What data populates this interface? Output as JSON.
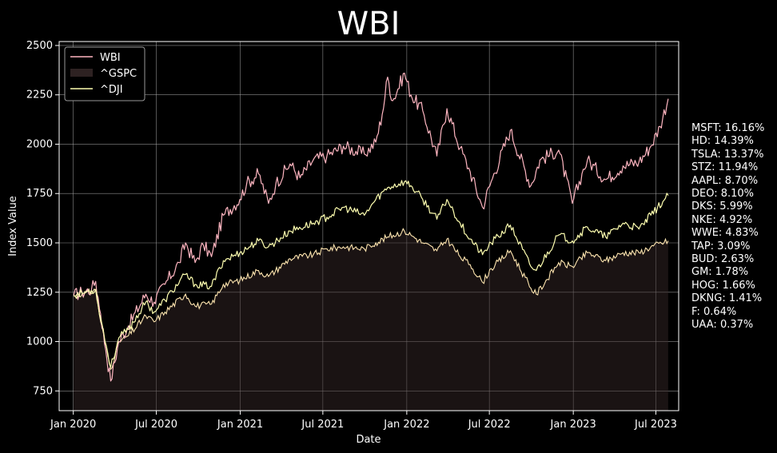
{
  "chart_data": {
    "type": "line",
    "title": "WBI",
    "xlabel": "Date",
    "ylabel": "Index Value",
    "x_range": [
      "2019-12-01",
      "2023-08-20"
    ],
    "ylim": [
      650,
      2520
    ],
    "x_ticks": [
      {
        "date": "2020-01-01",
        "label": "Jan 2020"
      },
      {
        "date": "2020-07-01",
        "label": "Jul 2020"
      },
      {
        "date": "2021-01-01",
        "label": "Jan 2021"
      },
      {
        "date": "2021-07-01",
        "label": "Jul 2021"
      },
      {
        "date": "2022-01-01",
        "label": "Jan 2022"
      },
      {
        "date": "2022-07-01",
        "label": "Jul 2022"
      },
      {
        "date": "2023-01-01",
        "label": "Jan 2023"
      },
      {
        "date": "2023-07-01",
        "label": "Jul 2023"
      }
    ],
    "y_ticks": [
      750,
      1000,
      1250,
      1500,
      1750,
      2000,
      2250,
      2500
    ],
    "grid": true,
    "legend_position": "top-left",
    "series": [
      {
        "name": "WBI",
        "style": "line",
        "color": "#ffb6c1",
        "points": [
          [
            "2020-01-02",
            1235
          ],
          [
            "2020-01-20",
            1250
          ],
          [
            "2020-02-10",
            1265
          ],
          [
            "2020-02-19",
            1305
          ],
          [
            "2020-03-01",
            1140
          ],
          [
            "2020-03-12",
            960
          ],
          [
            "2020-03-23",
            800
          ],
          [
            "2020-04-10",
            1000
          ],
          [
            "2020-05-01",
            1080
          ],
          [
            "2020-06-08",
            1240
          ],
          [
            "2020-06-26",
            1200
          ],
          [
            "2020-07-20",
            1290
          ],
          [
            "2020-08-20",
            1400
          ],
          [
            "2020-09-03",
            1500
          ],
          [
            "2020-09-24",
            1400
          ],
          [
            "2020-10-12",
            1490
          ],
          [
            "2020-10-30",
            1430
          ],
          [
            "2020-11-25",
            1640
          ],
          [
            "2020-12-31",
            1720
          ],
          [
            "2021-01-15",
            1800
          ],
          [
            "2021-02-10",
            1850
          ],
          [
            "2021-03-04",
            1700
          ],
          [
            "2021-03-20",
            1800
          ],
          [
            "2021-04-20",
            1900
          ],
          [
            "2021-05-12",
            1830
          ],
          [
            "2021-06-10",
            1920
          ],
          [
            "2021-07-10",
            1940
          ],
          [
            "2021-08-15",
            1990
          ],
          [
            "2021-09-30",
            1950
          ],
          [
            "2021-10-25",
            2010
          ],
          [
            "2021-11-08",
            2150
          ],
          [
            "2021-11-20",
            2340
          ],
          [
            "2021-12-01",
            2220
          ],
          [
            "2021-12-27",
            2360
          ],
          [
            "2022-01-10",
            2250
          ],
          [
            "2022-02-05",
            2170
          ],
          [
            "2022-03-08",
            1940
          ],
          [
            "2022-03-30",
            2180
          ],
          [
            "2022-04-28",
            1980
          ],
          [
            "2022-05-20",
            1860
          ],
          [
            "2022-06-16",
            1680
          ],
          [
            "2022-07-05",
            1810
          ],
          [
            "2022-08-16",
            2070
          ],
          [
            "2022-09-30",
            1790
          ],
          [
            "2022-10-20",
            1920
          ],
          [
            "2022-11-30",
            1970
          ],
          [
            "2022-12-30",
            1700
          ],
          [
            "2023-01-20",
            1850
          ],
          [
            "2023-02-01",
            1920
          ],
          [
            "2023-03-13",
            1820
          ],
          [
            "2023-04-20",
            1890
          ],
          [
            "2023-05-25",
            1910
          ],
          [
            "2023-06-20",
            1990
          ],
          [
            "2023-07-10",
            2090
          ],
          [
            "2023-07-28",
            2230
          ]
        ]
      },
      {
        "name": "^GSPC",
        "style": "area",
        "color": "#3a2a2a",
        "opacity": 0.45,
        "points": [
          [
            "2020-01-02",
            1230
          ],
          [
            "2020-01-20",
            1240
          ],
          [
            "2020-02-19",
            1260
          ],
          [
            "2020-03-01",
            1100
          ],
          [
            "2020-03-23",
            860
          ],
          [
            "2020-04-10",
            1000
          ],
          [
            "2020-05-01",
            1030
          ],
          [
            "2020-06-08",
            1130
          ],
          [
            "2020-06-26",
            1100
          ],
          [
            "2020-07-20",
            1150
          ],
          [
            "2020-09-03",
            1240
          ],
          [
            "2020-09-24",
            1180
          ],
          [
            "2020-10-30",
            1190
          ],
          [
            "2020-11-25",
            1290
          ],
          [
            "2020-12-31",
            1310
          ],
          [
            "2021-02-10",
            1360
          ],
          [
            "2021-03-04",
            1330
          ],
          [
            "2021-04-20",
            1420
          ],
          [
            "2021-06-10",
            1440
          ],
          [
            "2021-07-10",
            1470
          ],
          [
            "2021-08-15",
            1480
          ],
          [
            "2021-09-30",
            1470
          ],
          [
            "2021-10-25",
            1500
          ],
          [
            "2021-11-20",
            1530
          ],
          [
            "2021-12-27",
            1560
          ],
          [
            "2022-01-10",
            1540
          ],
          [
            "2022-02-05",
            1500
          ],
          [
            "2022-03-08",
            1460
          ],
          [
            "2022-03-30",
            1520
          ],
          [
            "2022-04-28",
            1430
          ],
          [
            "2022-05-20",
            1390
          ],
          [
            "2022-06-16",
            1300
          ],
          [
            "2022-07-05",
            1370
          ],
          [
            "2022-08-16",
            1460
          ],
          [
            "2022-09-30",
            1270
          ],
          [
            "2022-10-12",
            1240
          ],
          [
            "2022-11-30",
            1400
          ],
          [
            "2022-12-30",
            1380
          ],
          [
            "2023-02-01",
            1450
          ],
          [
            "2023-03-13",
            1410
          ],
          [
            "2023-04-20",
            1450
          ],
          [
            "2023-05-25",
            1450
          ],
          [
            "2023-06-20",
            1480
          ],
          [
            "2023-07-28",
            1510
          ]
        ]
      },
      {
        "name": "^DJI",
        "style": "line",
        "color": "#ffffb0",
        "points": [
          [
            "2020-01-02",
            1235
          ],
          [
            "2020-01-20",
            1245
          ],
          [
            "2020-02-19",
            1265
          ],
          [
            "2020-03-01",
            1120
          ],
          [
            "2020-03-23",
            870
          ],
          [
            "2020-04-10",
            1020
          ],
          [
            "2020-05-01",
            1060
          ],
          [
            "2020-06-08",
            1200
          ],
          [
            "2020-06-26",
            1150
          ],
          [
            "2020-07-20",
            1210
          ],
          [
            "2020-09-03",
            1340
          ],
          [
            "2020-09-24",
            1290
          ],
          [
            "2020-10-30",
            1280
          ],
          [
            "2020-11-25",
            1410
          ],
          [
            "2020-12-31",
            1450
          ],
          [
            "2021-02-10",
            1510
          ],
          [
            "2021-03-04",
            1480
          ],
          [
            "2021-04-20",
            1560
          ],
          [
            "2021-06-10",
            1600
          ],
          [
            "2021-07-10",
            1630
          ],
          [
            "2021-08-15",
            1680
          ],
          [
            "2021-09-30",
            1640
          ],
          [
            "2021-10-25",
            1720
          ],
          [
            "2021-11-20",
            1780
          ],
          [
            "2021-12-27",
            1810
          ],
          [
            "2022-01-10",
            1790
          ],
          [
            "2022-02-05",
            1720
          ],
          [
            "2022-03-08",
            1620
          ],
          [
            "2022-03-30",
            1720
          ],
          [
            "2022-04-28",
            1600
          ],
          [
            "2022-05-20",
            1520
          ],
          [
            "2022-06-16",
            1440
          ],
          [
            "2022-07-05",
            1500
          ],
          [
            "2022-08-16",
            1590
          ],
          [
            "2022-09-30",
            1380
          ],
          [
            "2022-10-12",
            1360
          ],
          [
            "2022-11-30",
            1540
          ],
          [
            "2022-12-30",
            1510
          ],
          [
            "2023-02-01",
            1580
          ],
          [
            "2023-03-13",
            1530
          ],
          [
            "2023-04-20",
            1600
          ],
          [
            "2023-05-25",
            1570
          ],
          [
            "2023-06-20",
            1640
          ],
          [
            "2023-07-28",
            1740
          ]
        ]
      }
    ]
  },
  "weights": [
    "MSFT: 16.16%",
    "HD: 14.39%",
    "TSLA: 13.37%",
    "STZ: 11.94%",
    "AAPL: 8.70%",
    "DEO: 8.10%",
    "DKS: 5.99%",
    "NKE: 4.92%",
    "WWE: 4.83%",
    "TAP: 3.09%",
    "BUD: 2.63%",
    "GM: 1.78%",
    "HOG: 1.66%",
    "DKNG: 1.41%",
    "F: 0.64%",
    "UAA: 0.37%"
  ]
}
